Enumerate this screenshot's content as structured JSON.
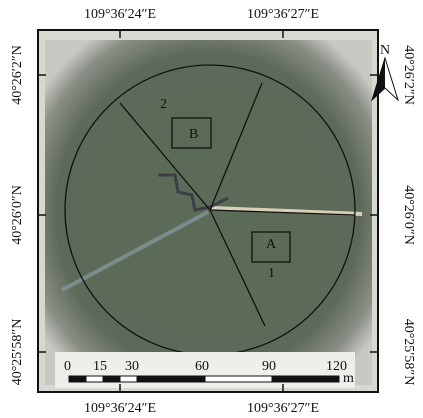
{
  "coords": {
    "top": [
      "109°36′24″E",
      "109°36′27″E"
    ],
    "bottom": [
      "109°36′24″E",
      "109°36′27″E"
    ],
    "left": [
      "40°26′2″N",
      "40°26′0″N",
      "40°25′58″N"
    ],
    "right": [
      "40°26′2″N",
      "40°26′0″N",
      "40°25′58″N"
    ]
  },
  "north": "N",
  "plots": [
    "A",
    "B"
  ],
  "sectors": [
    "1",
    "2"
  ],
  "scale": {
    "ticks": [
      "0",
      "15",
      "30",
      "60",
      "90",
      "120"
    ],
    "unit": "m"
  }
}
